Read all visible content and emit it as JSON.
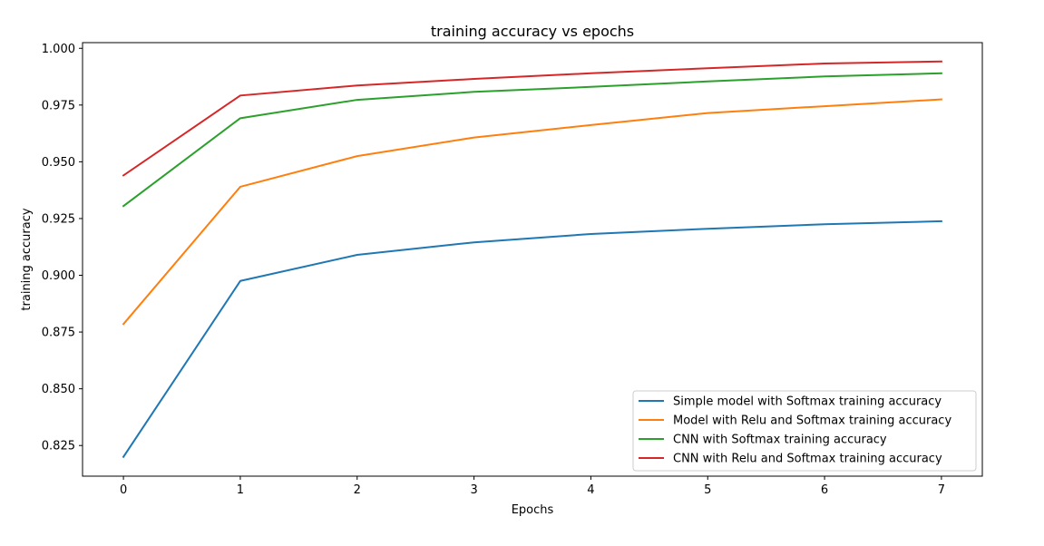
{
  "chart_data": {
    "type": "line",
    "title": "training accuracy vs epochs",
    "xlabel": "Epochs",
    "ylabel": "training accuracy",
    "x": [
      0,
      1,
      2,
      3,
      4,
      5,
      6,
      7
    ],
    "xlim": [
      -0.35,
      7.35
    ],
    "ylim": [
      0.8115,
      1.0025
    ],
    "xticks": [
      0,
      1,
      2,
      3,
      4,
      5,
      6,
      7
    ],
    "xtick_labels": [
      "0",
      "1",
      "2",
      "3",
      "4",
      "5",
      "6",
      "7"
    ],
    "yticks": [
      0.825,
      0.85,
      0.875,
      0.9,
      0.925,
      0.95,
      0.975,
      1.0
    ],
    "ytick_labels": [
      "0.825",
      "0.850",
      "0.875",
      "0.900",
      "0.925",
      "0.950",
      "0.975",
      "1.000"
    ],
    "grid": false,
    "legend_position": "bottom-right",
    "series": [
      {
        "name": "Simple model with Softmax training accuracy",
        "color": "#1f77b4",
        "values": [
          0.82,
          0.8975,
          0.909,
          0.9145,
          0.9182,
          0.9205,
          0.9225,
          0.9238
        ]
      },
      {
        "name": "Model with Relu and Softmax training accuracy",
        "color": "#ff7f0e",
        "values": [
          0.8785,
          0.939,
          0.9525,
          0.9607,
          0.9662,
          0.9715,
          0.9745,
          0.9775
        ]
      },
      {
        "name": "CNN with Softmax training accuracy",
        "color": "#2ca02c",
        "values": [
          0.9305,
          0.9692,
          0.9773,
          0.9808,
          0.983,
          0.9854,
          0.9876,
          0.989
        ]
      },
      {
        "name": "CNN with Relu and Softmax training accuracy",
        "color": "#d62728",
        "values": [
          0.944,
          0.9792,
          0.9836,
          0.9865,
          0.989,
          0.9912,
          0.9933,
          0.9942
        ]
      }
    ]
  }
}
